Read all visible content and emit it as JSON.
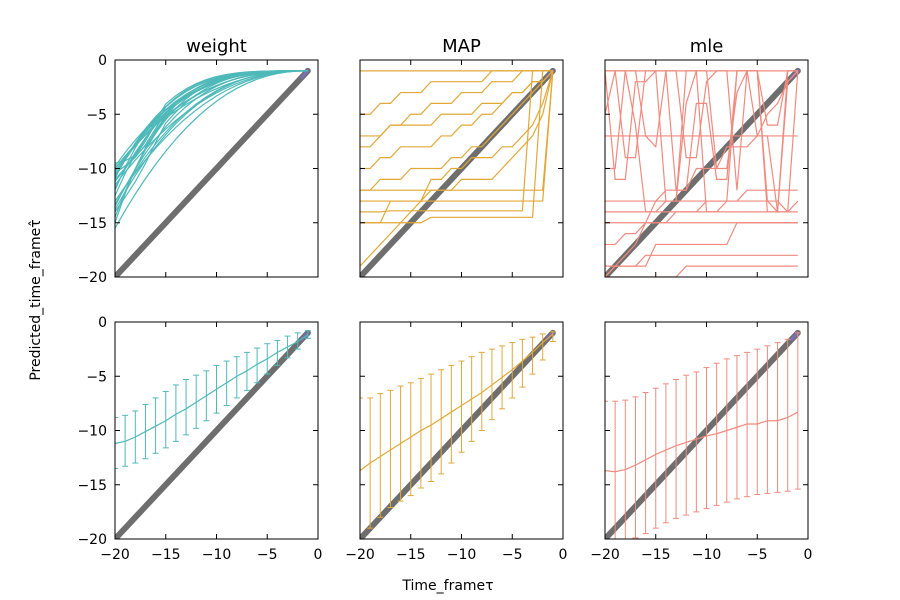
{
  "figure": {
    "xlabel": "Time_frameτ",
    "ylabel": "Predicted_time_frameτ̂"
  },
  "colors": {
    "weight": "#4fb9b9",
    "map": "#e1a838",
    "mle": "#f08a7e",
    "identity": "#6e6e6e",
    "identity_end": "#7a70b5"
  },
  "chart_data": [
    {
      "type": "line",
      "panel": "top-left",
      "title": "weight",
      "x": [
        -20,
        -19,
        -18,
        -17,
        -16,
        -15,
        -14,
        -13,
        -12,
        -11,
        -10,
        -9,
        -8,
        -7,
        -6,
        -5,
        -4,
        -3,
        -2,
        -1
      ],
      "xlim": [
        -20,
        0
      ],
      "ylim": [
        -20,
        0
      ],
      "xticks": [
        -20,
        -15,
        -10,
        -5,
        0
      ],
      "yticks": [
        0,
        -5,
        -10,
        -15,
        -20
      ],
      "xticklabels": [
        "−20",
        "−15",
        "−10",
        "−5",
        "0"
      ],
      "yticklabels": [
        "0",
        "−5",
        "−10",
        "−15",
        "−20"
      ],
      "show_xticklabels": false,
      "show_yticklabels": true,
      "identity_line": true,
      "series_start_y": [
        -9.5,
        -10.0,
        -10.3,
        -10.6,
        -10.9,
        -11.2,
        -11.5,
        -10.2,
        -9.8,
        -10.8,
        -11.0,
        -12.0,
        -13.0,
        -13.3,
        -13.5,
        -14.0,
        -14.5,
        -15.0,
        -15.5,
        -13.8,
        -10.4,
        -11.8,
        -12.5
      ],
      "series_end_y": -1.0
    },
    {
      "type": "line",
      "panel": "top-center",
      "title": "MAP",
      "x": [
        -20,
        -19,
        -18,
        -17,
        -16,
        -15,
        -14,
        -13,
        -12,
        -11,
        -10,
        -9,
        -8,
        -7,
        -6,
        -5,
        -4,
        -3,
        -2,
        -1
      ],
      "xlim": [
        -20,
        0
      ],
      "ylim": [
        -20,
        0
      ],
      "xticks": [
        -20,
        -15,
        -10,
        -5,
        0
      ],
      "yticks": [
        0,
        -5,
        -10,
        -15,
        -20
      ],
      "xticklabels": [
        "−20",
        "−15",
        "−10",
        "−5",
        "0"
      ],
      "yticklabels": [
        "0",
        "−5",
        "−10",
        "−15",
        "−20"
      ],
      "show_xticklabels": false,
      "show_yticklabels": false,
      "identity_line": true,
      "series": [
        {
          "values": [
            -1,
            -1,
            -1,
            -1,
            -1,
            -1,
            -1,
            -1,
            -1,
            -1,
            -1,
            -1,
            -1,
            -1,
            -1,
            -1,
            -1,
            -1,
            -1,
            -1
          ]
        },
        {
          "values": [
            -13,
            -13,
            -13,
            -13,
            -13,
            -13,
            -13,
            -13,
            -13,
            -13,
            -13,
            -13,
            -13,
            -13,
            -13,
            -13,
            -13,
            -13,
            -13,
            -1
          ]
        },
        {
          "values": [
            -14,
            -14,
            -14,
            -13.9,
            -13.9,
            -13.9,
            -13.9,
            -13.9,
            -13.9,
            -13.9,
            -13.9,
            -13.9,
            -13.9,
            -13.9,
            -13.9,
            -13.9,
            -13.9,
            -1,
            -1,
            -1
          ]
        },
        {
          "values": [
            -15,
            -15,
            -15,
            -15,
            -15,
            -15,
            -15,
            -14.5,
            -14.5,
            -14.5,
            -14.5,
            -14.5,
            -14.5,
            -14.5,
            -14.5,
            -14.5,
            -14.5,
            -14.5,
            -1,
            -1
          ]
        },
        {
          "values": [
            -19,
            -18,
            -17,
            -16,
            -15,
            -14,
            -13,
            -12,
            -12,
            -12,
            -11,
            -11,
            -11,
            -11,
            -10,
            -9,
            -8,
            -7,
            -5,
            -1
          ]
        },
        {
          "values": [
            -10,
            -10,
            -9,
            -9,
            -8,
            -8,
            -8,
            -8,
            -7,
            -7,
            -6,
            -6,
            -5,
            -5,
            -4,
            -3,
            -3,
            -2,
            -2,
            -1
          ]
        },
        {
          "values": [
            -8,
            -8,
            -7,
            -6,
            -6,
            -5,
            -5,
            -4,
            -4,
            -4,
            -3,
            -3,
            -3,
            -2,
            -2,
            -2,
            -1,
            -1,
            -1,
            -1
          ]
        },
        {
          "values": [
            -12,
            -12,
            -11,
            -11,
            -11,
            -10,
            -10,
            -10,
            -10,
            -9,
            -9,
            -8,
            -8,
            -7,
            -6,
            -5,
            -4,
            -3,
            -2,
            -1
          ]
        },
        {
          "values": [
            -5,
            -5,
            -4,
            -4,
            -3,
            -3,
            -3,
            -2,
            -2,
            -2,
            -2,
            -2,
            -2,
            -1,
            -1,
            -1,
            -1,
            -1,
            -1,
            -1
          ]
        },
        {
          "values": [
            -15,
            -15,
            -15,
            -13,
            -13,
            -13,
            -13,
            -11,
            -11,
            -10,
            -10,
            -9,
            -9,
            -9,
            -8,
            -8,
            -7,
            -6,
            -4,
            -1
          ]
        },
        {
          "values": [
            -12,
            -12,
            -12,
            -12,
            -12,
            -12,
            -12,
            -12,
            -12,
            -12,
            -12,
            -12,
            -12,
            -12,
            -12,
            -12,
            -12,
            -12,
            -12,
            -1
          ]
        },
        {
          "values": [
            -7,
            -7,
            -7,
            -6,
            -6,
            -6,
            -6,
            -6,
            -5,
            -5,
            -5,
            -5,
            -4,
            -4,
            -4,
            -3,
            -3,
            -2,
            -2,
            -1
          ]
        }
      ]
    },
    {
      "type": "line",
      "panel": "top-right",
      "title": "mle",
      "x": [
        -20,
        -19,
        -18,
        -17,
        -16,
        -15,
        -14,
        -13,
        -12,
        -11,
        -10,
        -9,
        -8,
        -7,
        -6,
        -5,
        -4,
        -3,
        -2,
        -1
      ],
      "xlim": [
        -20,
        0
      ],
      "ylim": [
        -20,
        0
      ],
      "xticks": [
        -20,
        -15,
        -10,
        -5,
        0
      ],
      "yticks": [
        0,
        -5,
        -10,
        -15,
        -20
      ],
      "xticklabels": [
        "−20",
        "−15",
        "−10",
        "−5",
        "0"
      ],
      "yticklabels": [
        "0",
        "−5",
        "−10",
        "−15",
        "−20"
      ],
      "show_xticklabels": false,
      "show_yticklabels": false,
      "identity_line": true,
      "series": [
        {
          "values": [
            -1,
            -1,
            -1,
            -1,
            -1,
            -1,
            -1,
            -1,
            -1,
            -1,
            -1,
            -1,
            -1,
            -1,
            -1,
            -1,
            -1,
            -1,
            -1,
            -1
          ]
        },
        {
          "values": [
            -7,
            -7,
            -7,
            -7,
            -7,
            -7,
            -7,
            -7,
            -7,
            -7,
            -7,
            -7,
            -7,
            -7,
            -7,
            -7,
            -7,
            -7,
            -7,
            -7
          ]
        },
        {
          "values": [
            -14,
            -14,
            -14,
            -14,
            -14,
            -14,
            -14,
            -14,
            -14,
            -14,
            -14,
            -14,
            -14,
            -14,
            -14,
            -14,
            -14,
            -14,
            -14,
            -13
          ]
        },
        {
          "values": [
            -15,
            -15,
            -15,
            -15,
            -15,
            -15,
            -15,
            -15,
            -15,
            -15,
            -15,
            -15,
            -15,
            -15,
            -15,
            -15,
            -15,
            -15,
            -15,
            -15
          ]
        },
        {
          "values": [
            -13,
            -13,
            -13,
            -13,
            -13,
            -13,
            -13,
            -13,
            -13,
            -13,
            -13,
            -13,
            -13,
            -13,
            -13,
            -13,
            -13,
            -13,
            -14,
            -14
          ]
        },
        {
          "values": [
            -20,
            -19,
            -19,
            -19,
            -18,
            -18,
            -18,
            -18,
            -18,
            -18,
            -18,
            -18,
            -18,
            -18,
            -18,
            -18,
            -18,
            -18,
            -18,
            -18
          ]
        },
        {
          "values": [
            -19,
            -19,
            -18,
            -17,
            -15,
            -13,
            -12,
            -12,
            -12,
            -10,
            -10,
            -10,
            -8,
            -8,
            -8,
            -7,
            -5,
            -4,
            -2,
            -1
          ]
        },
        {
          "values": [
            -20,
            -20,
            -20,
            -20,
            -20,
            -20,
            -20,
            -20,
            -19,
            -19,
            -19,
            -19,
            -19,
            -19,
            -19,
            -19,
            -19,
            -19,
            -19,
            -19
          ]
        },
        {
          "values": [
            -5,
            -1,
            -1,
            -6,
            -14,
            -14,
            -13,
            -13,
            -1,
            -1,
            -14,
            -14,
            -13,
            -1,
            -1,
            -1,
            -13,
            -14,
            -1,
            -1
          ]
        },
        {
          "values": [
            -17,
            -17,
            -16,
            -16,
            -15,
            -15,
            -15,
            -14,
            -14,
            -14,
            -13,
            -13,
            -13,
            -13,
            -12,
            -12,
            -12,
            -12,
            -12,
            -12
          ]
        },
        {
          "values": [
            -1,
            -11,
            -11,
            -2,
            -2,
            -1,
            -1,
            -12,
            -12,
            -4,
            -4,
            -11,
            -11,
            -1,
            -1,
            -7,
            -7,
            -14,
            -14,
            -1
          ]
        },
        {
          "values": [
            -20,
            -19,
            -19,
            -19,
            -19,
            -17,
            -17,
            -17,
            -17,
            -17,
            -17,
            -17,
            -17,
            -15,
            -15,
            -15,
            -15,
            -15,
            -15,
            -15
          ]
        },
        {
          "values": [
            -10,
            -10,
            -1,
            -1,
            -7,
            -8,
            -1,
            -1,
            -9,
            -9,
            -2,
            -1,
            -1,
            -12,
            -1,
            -1,
            -6,
            -6,
            -1,
            -1
          ]
        },
        {
          "values": [
            -1,
            -1,
            -9,
            -9,
            -1,
            -1,
            -13,
            -13,
            -4,
            -1,
            -1,
            -10,
            -10,
            -3,
            -1,
            -1,
            -14,
            -14,
            -2,
            -1
          ]
        }
      ]
    },
    {
      "type": "line",
      "panel": "bottom-left",
      "title": "",
      "x": [
        -20,
        -19,
        -18,
        -17,
        -16,
        -15,
        -14,
        -13,
        -12,
        -11,
        -10,
        -9,
        -8,
        -7,
        -6,
        -5,
        -4,
        -3,
        -2,
        -1
      ],
      "xlim": [
        -20,
        0
      ],
      "ylim": [
        -20,
        0
      ],
      "xticks": [
        -20,
        -15,
        -10,
        -5,
        0
      ],
      "yticks": [
        0,
        -5,
        -10,
        -15,
        -20
      ],
      "xticklabels": [
        "−20",
        "−15",
        "−10",
        "−5",
        "0"
      ],
      "yticklabels": [
        "0",
        "−5",
        "−10",
        "−15",
        "−20"
      ],
      "show_xticklabels": true,
      "show_yticklabels": true,
      "identity_line": true,
      "series": [
        {
          "values": [
            -11.2,
            -11.0,
            -10.6,
            -10.1,
            -9.6,
            -9.1,
            -8.5,
            -8.0,
            -7.4,
            -6.8,
            -6.2,
            -5.6,
            -5.0,
            -4.5,
            -3.9,
            -3.4,
            -2.8,
            -2.3,
            -1.8,
            -1.2
          ]
        }
      ],
      "error_bars": {
        "lower": [
          -13.5,
          -13.3,
          -13.0,
          -12.6,
          -12.1,
          -11.6,
          -11.0,
          -10.4,
          -9.8,
          -9.1,
          -8.4,
          -7.7,
          -7.0,
          -6.3,
          -5.6,
          -4.8,
          -4.0,
          -3.3,
          -2.5,
          -1.5
        ],
        "upper": [
          -8.8,
          -8.6,
          -8.2,
          -7.6,
          -7.0,
          -6.4,
          -5.8,
          -5.3,
          -4.9,
          -4.5,
          -4.0,
          -3.6,
          -3.2,
          -2.8,
          -2.4,
          -2.0,
          -1.7,
          -1.3,
          -1.0,
          -0.8
        ]
      }
    },
    {
      "type": "line",
      "panel": "bottom-center",
      "title": "",
      "x": [
        -20,
        -19,
        -18,
        -17,
        -16,
        -15,
        -14,
        -13,
        -12,
        -11,
        -10,
        -9,
        -8,
        -7,
        -6,
        -5,
        -4,
        -3,
        -2,
        -1
      ],
      "xlim": [
        -20,
        0
      ],
      "ylim": [
        -20,
        0
      ],
      "xticks": [
        -20,
        -15,
        -10,
        -5,
        0
      ],
      "yticks": [
        0,
        -5,
        -10,
        -15,
        -20
      ],
      "xticklabels": [
        "−20",
        "−15",
        "−10",
        "−5",
        "0"
      ],
      "yticklabels": [
        "0",
        "−5",
        "−10",
        "−15",
        "−20"
      ],
      "show_xticklabels": true,
      "show_yticklabels": false,
      "identity_line": true,
      "series": [
        {
          "values": [
            -13.7,
            -13.0,
            -12.4,
            -11.8,
            -11.2,
            -10.6,
            -10.0,
            -9.5,
            -8.9,
            -8.3,
            -7.7,
            -7.1,
            -6.5,
            -5.8,
            -5.1,
            -4.4,
            -3.6,
            -2.8,
            -1.9,
            -1.1
          ]
        }
      ],
      "error_bars": {
        "lower": [
          -20.0,
          -19.0,
          -18.0,
          -17.1,
          -16.5,
          -16.0,
          -15.3,
          -14.7,
          -14.0,
          -13.0,
          -12.0,
          -11.0,
          -10.0,
          -9.0,
          -8.0,
          -7.0,
          -6.0,
          -4.8,
          -3.5,
          -1.8
        ],
        "upper": [
          -7.0,
          -7.0,
          -6.6,
          -6.3,
          -5.9,
          -5.6,
          -5.2,
          -4.8,
          -4.4,
          -4.0,
          -3.6,
          -3.2,
          -2.8,
          -2.5,
          -2.2,
          -1.9,
          -1.6,
          -1.4,
          -1.1,
          -0.9
        ]
      }
    },
    {
      "type": "line",
      "panel": "bottom-right",
      "title": "",
      "x": [
        -20,
        -19,
        -18,
        -17,
        -16,
        -15,
        -14,
        -13,
        -12,
        -11,
        -10,
        -9,
        -8,
        -7,
        -6,
        -5,
        -4,
        -3,
        -2,
        -1
      ],
      "xlim": [
        -20,
        0
      ],
      "ylim": [
        -20,
        0
      ],
      "xticks": [
        -20,
        -15,
        -10,
        -5,
        0
      ],
      "yticks": [
        0,
        -5,
        -10,
        -15,
        -20
      ],
      "xticklabels": [
        "−20",
        "−15",
        "−10",
        "−5",
        "0"
      ],
      "yticklabels": [
        "0",
        "−5",
        "−10",
        "−15",
        "−20"
      ],
      "show_xticklabels": true,
      "show_yticklabels": false,
      "identity_line": true,
      "series": [
        {
          "values": [
            -13.7,
            -13.8,
            -13.6,
            -13.2,
            -12.7,
            -12.2,
            -11.8,
            -11.4,
            -11.1,
            -10.8,
            -10.5,
            -10.3,
            -10.0,
            -9.7,
            -9.4,
            -9.4,
            -9.1,
            -9.1,
            -8.8,
            -8.3
          ]
        }
      ],
      "error_bars": {
        "lower": [
          -20.0,
          -20.0,
          -20.0,
          -19.9,
          -19.5,
          -19.0,
          -18.5,
          -18.1,
          -17.8,
          -17.5,
          -17.2,
          -16.9,
          -16.6,
          -16.3,
          -16.1,
          -15.9,
          -15.8,
          -15.7,
          -15.6,
          -15.4
        ],
        "upper": [
          -7.3,
          -7.3,
          -7.2,
          -6.9,
          -6.5,
          -6.1,
          -5.7,
          -5.3,
          -4.9,
          -4.6,
          -4.2,
          -3.8,
          -3.4,
          -3.1,
          -2.8,
          -2.5,
          -2.2,
          -1.9,
          -1.6,
          -1.0
        ]
      }
    }
  ]
}
